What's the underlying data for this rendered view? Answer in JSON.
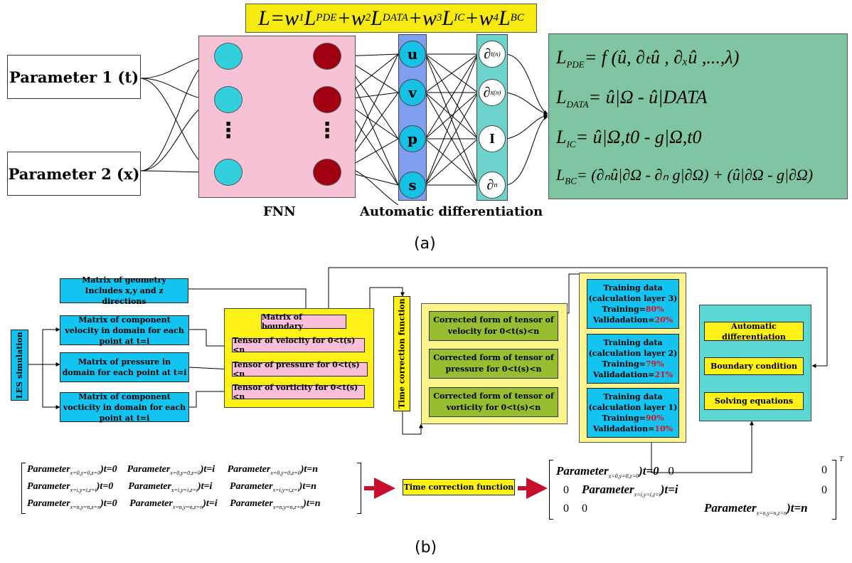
{
  "panel_a": {
    "loss_total": {
      "L": "L",
      "w1": "w",
      "s1": "1",
      "Lpde": "L",
      "pde": "PDE",
      "w2": "w",
      "s2": "2",
      "Ldata": "L",
      "data": "DATA",
      "w3": "w",
      "s3": "3",
      "Lic": "L",
      "ic": "IC",
      "w4": "w",
      "s4": "4",
      "Lbc": "L",
      "bc": "BC"
    },
    "param1": "Parameter 1 (t)",
    "param2": "Parameter 2 (x)",
    "fnn_label": "FNN",
    "dots": "⋮",
    "uvps": [
      "u",
      "v",
      "p",
      "s"
    ],
    "deriv": [
      "∂",
      "∂",
      "I",
      "∂"
    ],
    "deriv_sub": [
      "t",
      "x",
      "",
      "n"
    ],
    "deriv_sup": [
      "(n)",
      "(n)",
      "",
      ""
    ],
    "ad_label": "Automatic differentiation",
    "eq": {
      "pde": "L",
      "pde_sub": "PDE",
      "pde_rhs": "= f (û, ∂ₜû , ∂ₓû ,...,λ)",
      "data": "L",
      "data_sub": "DATA",
      "data_rhs": "= û|Ω - û|DATA",
      "ic": "L",
      "ic_sub": "IC",
      "ic_rhs": "= û|Ω,t0 - g|Ω,t0",
      "bc": "L",
      "bc_sub": "BC",
      "bc_rhs": "= (∂ₙû|∂Ω - ∂ₙ g|∂Ω) + (û|∂Ω - g|∂Ω)"
    },
    "caption": "(a)"
  },
  "panel_b": {
    "les": "LES simulation",
    "geom": "Matrix of geometry Includes x,y and z directions",
    "vel": "Matrix of component velocity in domain for each point at t=i",
    "pres": "Matrix of pressure in domain for each point at t=i",
    "vort": "Matrix of component vocticity in domain for each point at t=i",
    "boundary": "Matrix of boundary",
    "tvel": "Tensor of velocity for 0<t(s)<n",
    "tpres": "Tensor of pressure for 0<t(s)<n",
    "tvort": "Tensor of vorticity for 0<t(s)<n",
    "tcf": "Time correction function",
    "cvel": "Corrected form of tensor of velocity for 0<t(s)<n",
    "cpres": "Corrected form of tensor of pressure for 0<t(s)<n",
    "cvort": "Corrected form of tensor of vorticity for 0<t(s)<n",
    "train3": {
      "l1": "Training data",
      "l2": "(calculation layer 3)",
      "l3": "Training=",
      "v3": "80%",
      "l4": "Validadation=",
      "v4": "20%"
    },
    "train2": {
      "l1": "Training data",
      "l2": "(calculation layer 2)",
      "l3": "Training=",
      "v3": "79%",
      "l4": "Validadation=",
      "v4": "21%"
    },
    "train1": {
      "l1": "Training data",
      "l2": "(calculation layer 1)",
      "l3": "Training=",
      "v3": "90%",
      "l4": "Validadation=",
      "v4": "10%"
    },
    "autodiff": "Automatic differentiation",
    "bcond": "Boundary condition",
    "solve": "Solving equations",
    "tcf_bottom": "Time correction function",
    "caption": "(b)",
    "matrix_left": [
      [
        "Parameter",
        "x=0,y=0,z=0",
        ")t=0",
        "Parameter",
        "x=0,y=0,z=0",
        ")t=i",
        "Parameter",
        "x=0,y=0,z=0",
        ")t=n"
      ],
      [
        "Parameter",
        "x=i,y=i,z=i",
        ")t=0",
        "Parameter",
        "x=i,y=i,z=i",
        ")t=i",
        "Parameter",
        "x=i,y=i,z=i",
        ")t=n"
      ],
      [
        "Parameter",
        "x=n,y=n,z=n",
        ")t=0",
        "Parameter",
        "x=n,y=n,z=n",
        ")t=i",
        "Parameter",
        "x=n,y=n,z=n",
        ")t=n"
      ]
    ],
    "matrix_right": {
      "r1a": "Parameter",
      "r1s": "x=0,y=0,z=0",
      "r1b": ")t=0",
      "zero": "0",
      "r2a": "Parameter",
      "r2s": "x=i,y=i,z=i",
      "r2b": ")t=i",
      "r3a": "Parameter",
      "r3s": "x=n,y=n,z=n",
      "r3b": ")t=n",
      "T": "T"
    }
  },
  "colors": {
    "pink": "#f7c1d6",
    "cyan": "#32cfdd",
    "red": "#a00012",
    "blue": "#14c4f0",
    "yellow": "#fdf116",
    "green": "#7fc5a4",
    "olive": "#97bd31",
    "teal": "#5cd8d4",
    "arrow_red": "#c8102e"
  }
}
